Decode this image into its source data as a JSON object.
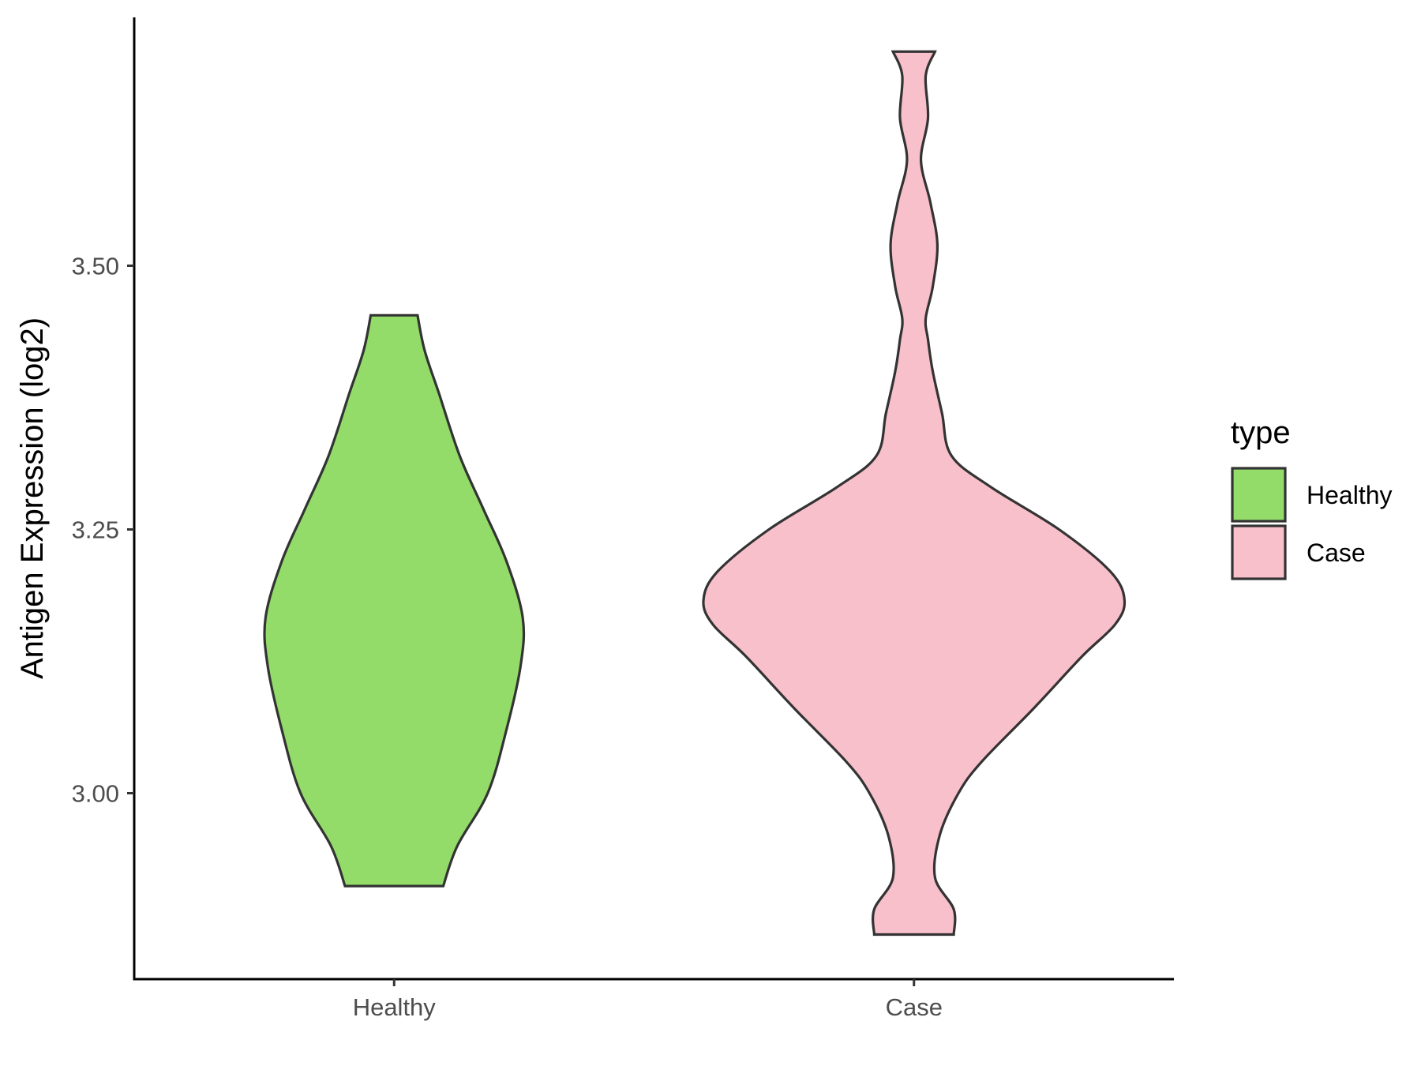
{
  "chart_data": {
    "type": "violin",
    "title": "",
    "xlabel": "",
    "ylabel": "Antigen Expression (log2)",
    "categories": [
      "Healthy",
      "Case"
    ],
    "yticks": [
      3.0,
      3.25,
      3.5
    ],
    "yticks_labels": [
      "3.00",
      "3.25",
      "3.50"
    ],
    "ylim": [
      2.83,
      3.74
    ],
    "grid": false,
    "legend": {
      "title": "type",
      "position": "right",
      "entries": [
        {
          "label": "Healthy",
          "color": "#93dc6a"
        },
        {
          "label": "Case",
          "color": "#f8c0cb"
        }
      ]
    },
    "series": [
      {
        "category": "Healthy",
        "color": "#93dc6a",
        "min": 2.912,
        "max": 3.453,
        "profile": [
          [
            2.912,
            0.21
          ],
          [
            2.95,
            0.27
          ],
          [
            3.0,
            0.4
          ],
          [
            3.06,
            0.48
          ],
          [
            3.12,
            0.54
          ],
          [
            3.166,
            0.55
          ],
          [
            3.22,
            0.48
          ],
          [
            3.27,
            0.38
          ],
          [
            3.32,
            0.28
          ],
          [
            3.38,
            0.19
          ],
          [
            3.42,
            0.13
          ],
          [
            3.453,
            0.1
          ]
        ]
      },
      {
        "category": "Case",
        "color": "#f8c0cb",
        "min": 2.866,
        "max": 3.703,
        "profile": [
          [
            2.866,
            0.17
          ],
          [
            2.89,
            0.17
          ],
          [
            2.92,
            0.09
          ],
          [
            2.96,
            0.11
          ],
          [
            3.0,
            0.19
          ],
          [
            3.03,
            0.29
          ],
          [
            3.08,
            0.51
          ],
          [
            3.13,
            0.72
          ],
          [
            3.16,
            0.86
          ],
          [
            3.183,
            0.9
          ],
          [
            3.21,
            0.84
          ],
          [
            3.25,
            0.62
          ],
          [
            3.29,
            0.33
          ],
          [
            3.32,
            0.16
          ],
          [
            3.36,
            0.12
          ],
          [
            3.4,
            0.08
          ],
          [
            3.43,
            0.06
          ],
          [
            3.45,
            0.05
          ],
          [
            3.48,
            0.08
          ],
          [
            3.52,
            0.1
          ],
          [
            3.56,
            0.07
          ],
          [
            3.6,
            0.03
          ],
          [
            3.64,
            0.06
          ],
          [
            3.68,
            0.05
          ],
          [
            3.703,
            0.09
          ]
        ]
      }
    ]
  }
}
